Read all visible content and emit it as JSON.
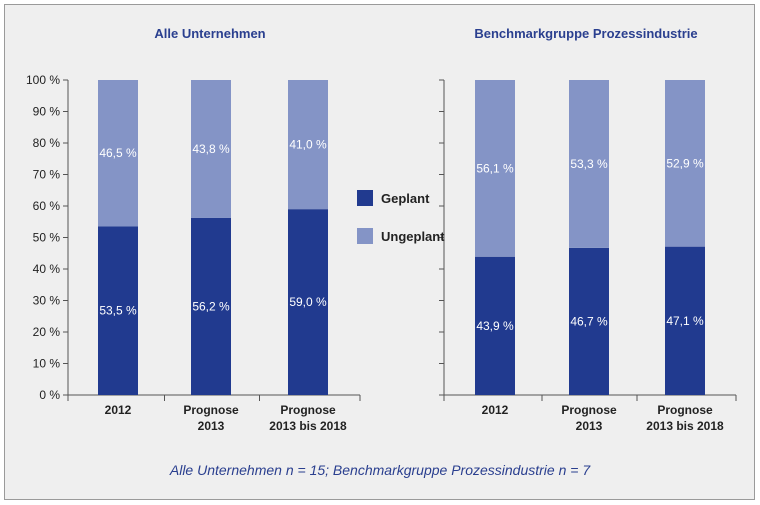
{
  "chart_data": [
    {
      "type": "bar",
      "stacked": true,
      "title": "Alle Unternehmen",
      "categories": [
        [
          "2012"
        ],
        [
          "Prognose",
          "2013"
        ],
        [
          "Prognose",
          "2013 bis 2018"
        ]
      ],
      "series": [
        {
          "name": "Geplant",
          "values": [
            53.5,
            56.2,
            59.0
          ],
          "labels": [
            "53,5 %",
            "56,2 %",
            "59,0 %"
          ],
          "color": "#213a8f"
        },
        {
          "name": "Ungeplant",
          "values": [
            46.5,
            43.8,
            41.0
          ],
          "labels": [
            "46,5 %",
            "43,8 %",
            "41,0 %"
          ],
          "color": "#8494c6"
        }
      ],
      "ylim": [
        0,
        100
      ],
      "yticks": [
        "0 %",
        "10 %",
        "20 %",
        "30 %",
        "40 %",
        "50 %",
        "60 %",
        "70 %",
        "80 %",
        "90 %",
        "100 %"
      ],
      "grid": false
    },
    {
      "type": "bar",
      "stacked": true,
      "title": "Benchmarkgruppe Prozessindustrie",
      "categories": [
        [
          "2012"
        ],
        [
          "Prognose",
          "2013"
        ],
        [
          "Prognose",
          "2013 bis 2018"
        ]
      ],
      "series": [
        {
          "name": "Geplant",
          "values": [
            43.9,
            46.7,
            47.1
          ],
          "labels": [
            "43,9 %",
            "46,7 %",
            "47,1 %"
          ],
          "color": "#213a8f"
        },
        {
          "name": "Ungeplant",
          "values": [
            56.1,
            53.3,
            52.9
          ],
          "labels": [
            "56,1 %",
            "53,3 %",
            "52,9 %"
          ],
          "color": "#8494c6"
        }
      ],
      "ylim": [
        0,
        100
      ],
      "grid": false
    }
  ],
  "legend": {
    "placement": "center",
    "items": [
      {
        "label": "Geplant",
        "color": "#213a8f"
      },
      {
        "label": "Ungeplant",
        "color": "#8494c6"
      }
    ]
  },
  "footnote": "Alle Unternehmen n = 15; Benchmarkgruppe Prozessindustrie n = 7"
}
